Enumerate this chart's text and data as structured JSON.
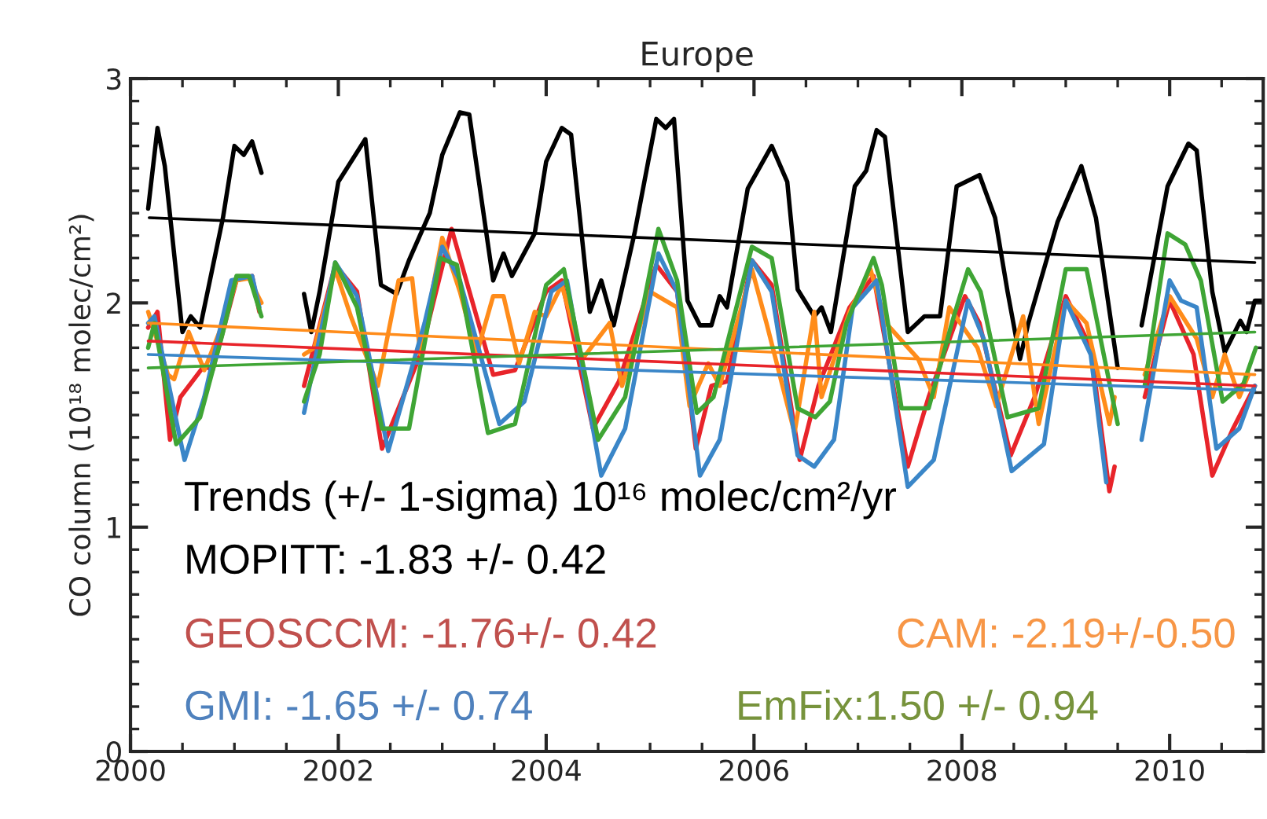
{
  "chart_data": {
    "type": "line",
    "title": "Europe",
    "ylabel": "CO column (10¹⁸ molec/cm²)",
    "xlim": [
      2000,
      2010.9
    ],
    "ylim": [
      0,
      3
    ],
    "xticks": [
      2000,
      2002,
      2004,
      2006,
      2008,
      2010
    ],
    "yticks": [
      0,
      1,
      2,
      3
    ],
    "series": [
      {
        "color": "#000000",
        "x": [
          2000.17,
          2000.26,
          2000.33,
          2000.5,
          2000.58,
          2000.67,
          2000.89,
          2001.0,
          2001.09,
          2001.17,
          2001.26,
          2001.45,
          2001.67,
          2001.74,
          2001.82,
          2002.0,
          2002.26,
          2002.41,
          2002.56,
          2002.68,
          2002.88,
          2003.0,
          2003.17,
          2003.26,
          2003.49,
          2003.59,
          2003.67,
          2003.89,
          2004.0,
          2004.15,
          2004.24,
          2004.42,
          2004.53,
          2004.65,
          2004.85,
          2005.06,
          2005.15,
          2005.23,
          2005.36,
          2005.48,
          2005.59,
          2005.67,
          2005.74,
          2005.94,
          2006.17,
          2006.32,
          2006.42,
          2006.58,
          2006.65,
          2006.74,
          2006.97,
          2007.08,
          2007.18,
          2007.26,
          2007.48,
          2007.64,
          2007.79,
          2007.95,
          2008.17,
          2008.32,
          2008.44,
          2008.56,
          2008.64,
          2008.92,
          2009.15,
          2009.29,
          2009.5,
          2009.6,
          2009.73,
          2009.98,
          2010.18,
          2010.26,
          2010.41,
          2010.53,
          2010.68,
          2010.74,
          2010.82,
          2010.89
        ],
        "values": [
          2.42,
          2.78,
          2.61,
          1.87,
          1.94,
          1.89,
          2.38,
          2.7,
          2.66,
          2.72,
          2.58,
          null,
          2.04,
          1.87,
          2.05,
          2.54,
          2.73,
          2.08,
          2.04,
          2.19,
          2.4,
          2.66,
          2.85,
          2.84,
          2.1,
          2.22,
          2.12,
          2.31,
          2.63,
          2.78,
          2.75,
          1.96,
          2.1,
          1.9,
          2.31,
          2.82,
          2.78,
          2.82,
          2.01,
          1.9,
          1.9,
          2.03,
          1.98,
          2.51,
          2.7,
          2.54,
          2.06,
          1.94,
          1.98,
          1.87,
          2.52,
          2.59,
          2.77,
          2.74,
          1.87,
          1.94,
          1.94,
          2.52,
          2.57,
          2.38,
          2.05,
          1.75,
          1.91,
          2.36,
          2.61,
          2.38,
          1.71,
          null,
          1.9,
          2.52,
          2.71,
          2.68,
          2.05,
          1.78,
          1.92,
          1.87,
          2.01,
          2.01
        ]
      },
      {
        "color": "#e8242a",
        "x": [
          2000.17,
          2000.26,
          2000.38,
          2000.48,
          2000.71,
          2000.79,
          2001.02,
          2001.17,
          2001.24,
          2001.45,
          2001.67,
          2001.97,
          2002.18,
          2002.42,
          2002.79,
          2003.09,
          2003.49,
          2003.7,
          2004.0,
          2004.15,
          2004.45,
          2004.7,
          2005.06,
          2005.26,
          2005.44,
          2005.59,
          2005.74,
          2005.98,
          2006.17,
          2006.44,
          2006.62,
          2006.92,
          2007.15,
          2007.48,
          2007.68,
          2008.03,
          2008.17,
          2008.47,
          2008.7,
          2009.0,
          2009.24,
          2009.42,
          2009.47,
          2009.6,
          2009.76,
          2010.0,
          2010.23,
          2010.41,
          2010.61,
          2010.82
        ],
        "values": [
          1.89,
          1.96,
          1.39,
          1.58,
          1.72,
          1.7,
          2.1,
          2.12,
          1.96,
          null,
          1.63,
          2.17,
          2.05,
          1.35,
          1.77,
          2.33,
          1.68,
          1.7,
          2.05,
          2.1,
          1.44,
          1.65,
          2.17,
          2.05,
          1.35,
          1.63,
          1.65,
          2.19,
          2.08,
          1.3,
          1.63,
          1.98,
          2.12,
          1.27,
          1.58,
          2.03,
          1.91,
          1.32,
          1.58,
          2.03,
          1.8,
          1.16,
          1.27,
          null,
          1.58,
          2.01,
          1.77,
          1.23,
          1.44,
          1.63
        ]
      },
      {
        "color": "#ff8c1a",
        "x": [
          2000.17,
          2000.36,
          2000.42,
          2000.56,
          2000.71,
          2000.89,
          2001.02,
          2001.14,
          2001.26,
          2001.45,
          2001.67,
          2001.77,
          2001.97,
          2002.12,
          2002.38,
          2002.58,
          2002.71,
          2002.79,
          2003.0,
          2003.17,
          2003.33,
          2003.49,
          2003.59,
          2003.74,
          2003.89,
          2004.0,
          2004.15,
          2004.35,
          2004.61,
          2004.73,
          2005.0,
          2005.26,
          2005.38,
          2005.56,
          2005.67,
          2005.98,
          2006.12,
          2006.39,
          2006.58,
          2006.65,
          2006.92,
          2007.12,
          2007.27,
          2007.58,
          2007.73,
          2007.88,
          2008.15,
          2008.33,
          2008.59,
          2008.74,
          2009.0,
          2009.2,
          2009.42,
          2009.47,
          2009.6,
          2009.76,
          2010.0,
          2010.26,
          2010.41,
          2010.53,
          2010.67,
          2010.76
        ],
        "values": [
          1.96,
          1.68,
          1.66,
          1.87,
          1.7,
          1.91,
          2.1,
          2.11,
          2.0,
          null,
          1.77,
          1.8,
          2.15,
          1.94,
          1.63,
          2.1,
          2.11,
          1.77,
          2.29,
          2.05,
          1.77,
          2.03,
          2.03,
          1.73,
          1.96,
          1.94,
          2.08,
          1.75,
          1.91,
          1.63,
          2.05,
          1.98,
          1.54,
          1.73,
          1.63,
          2.15,
          1.91,
          1.42,
          1.96,
          1.58,
          1.96,
          2.15,
          1.91,
          1.75,
          1.58,
          1.98,
          1.8,
          1.54,
          1.94,
          1.46,
          2.01,
          1.91,
          1.46,
          1.58,
          null,
          1.68,
          2.03,
          1.84,
          1.58,
          1.77,
          1.58,
          1.68
        ]
      },
      {
        "color": "#3a86c8",
        "x": [
          2000.17,
          2000.23,
          2000.52,
          2000.71,
          2000.97,
          2001.17,
          2001.24,
          2001.45,
          2001.67,
          2001.97,
          2002.18,
          2002.48,
          2002.83,
          2003.0,
          2003.17,
          2003.55,
          2003.79,
          2004.05,
          2004.2,
          2004.53,
          2004.76,
          2005.08,
          2005.26,
          2005.48,
          2005.67,
          2005.98,
          2006.17,
          2006.42,
          2006.58,
          2006.77,
          2006.95,
          2007.18,
          2007.48,
          2007.73,
          2008.06,
          2008.21,
          2008.48,
          2008.79,
          2009.0,
          2009.24,
          2009.39,
          2009.6,
          2009.73,
          2010.0,
          2010.11,
          2010.26,
          2010.45,
          2010.67,
          2010.82
        ],
        "values": [
          1.91,
          1.94,
          1.3,
          1.58,
          2.1,
          2.12,
          1.98,
          null,
          1.51,
          2.18,
          2.03,
          1.34,
          1.91,
          2.25,
          2.1,
          1.46,
          1.56,
          2.05,
          2.1,
          1.23,
          1.44,
          2.22,
          2.05,
          1.23,
          1.39,
          2.19,
          2.05,
          1.32,
          1.27,
          1.39,
          1.98,
          2.1,
          1.18,
          1.3,
          2.01,
          1.84,
          1.25,
          1.37,
          2.01,
          1.77,
          1.2,
          null,
          1.39,
          2.1,
          2.01,
          1.98,
          1.35,
          1.44,
          1.63
        ]
      },
      {
        "color": "#3fa535",
        "x": [
          2000.17,
          2000.23,
          2000.44,
          2000.67,
          2000.89,
          2001.02,
          2001.14,
          2001.26,
          2001.45,
          2001.67,
          2001.82,
          2001.97,
          2002.18,
          2002.42,
          2002.68,
          2002.98,
          2003.14,
          2003.44,
          2003.7,
          2004.0,
          2004.17,
          2004.5,
          2004.76,
          2005.08,
          2005.26,
          2005.45,
          2005.61,
          2005.98,
          2006.17,
          2006.42,
          2006.59,
          2006.73,
          2006.89,
          2007.15,
          2007.23,
          2007.42,
          2007.68,
          2007.91,
          2008.06,
          2008.18,
          2008.44,
          2008.74,
          2009.0,
          2009.2,
          2009.5,
          2009.6,
          2009.76,
          2009.98,
          2010.15,
          2010.3,
          2010.51,
          2010.71,
          2010.83
        ],
        "values": [
          1.8,
          1.91,
          1.37,
          1.49,
          1.87,
          2.12,
          2.12,
          1.94,
          null,
          1.56,
          1.77,
          2.18,
          1.98,
          1.44,
          1.44,
          2.2,
          2.17,
          1.42,
          1.46,
          2.08,
          2.15,
          1.39,
          1.58,
          2.33,
          2.1,
          1.51,
          1.58,
          2.25,
          2.2,
          1.53,
          1.49,
          1.56,
          1.91,
          2.2,
          2.08,
          1.53,
          1.53,
          1.92,
          2.15,
          2.05,
          1.49,
          1.53,
          2.15,
          2.15,
          1.46,
          null,
          1.63,
          2.31,
          2.26,
          2.1,
          1.56,
          1.64,
          1.8
        ]
      },
      {
        "type": "line",
        "color": "#000000",
        "x": [
          2000.18,
          2010.82
        ],
        "values": [
          2.38,
          2.18
        ]
      },
      {
        "type": "line",
        "color": "#e8242a",
        "x": [
          2000.17,
          2010.82
        ],
        "values": [
          1.83,
          1.63
        ]
      },
      {
        "type": "line",
        "color": "#ff8c1a",
        "x": [
          2000.17,
          2010.82
        ],
        "values": [
          1.91,
          1.68
        ]
      },
      {
        "type": "line",
        "color": "#3a86c8",
        "x": [
          2000.17,
          2010.82
        ],
        "values": [
          1.77,
          1.61
        ]
      },
      {
        "type": "line",
        "color": "#3fa535",
        "x": [
          2000.17,
          2010.82
        ],
        "values": [
          1.71,
          1.87
        ]
      }
    ],
    "annotations": [
      "Trends (+/- 1-sigma) 10¹⁶ molec/cm²/yr",
      "MOPITT: -1.83 +/- 0.42",
      "GEOSCCM: -1.76+/- 0.42",
      "CAM: -2.19+/-0.50",
      "GMI: -1.65 +/- 0.74",
      "EmFix:1.50 +/- 0.94"
    ]
  }
}
